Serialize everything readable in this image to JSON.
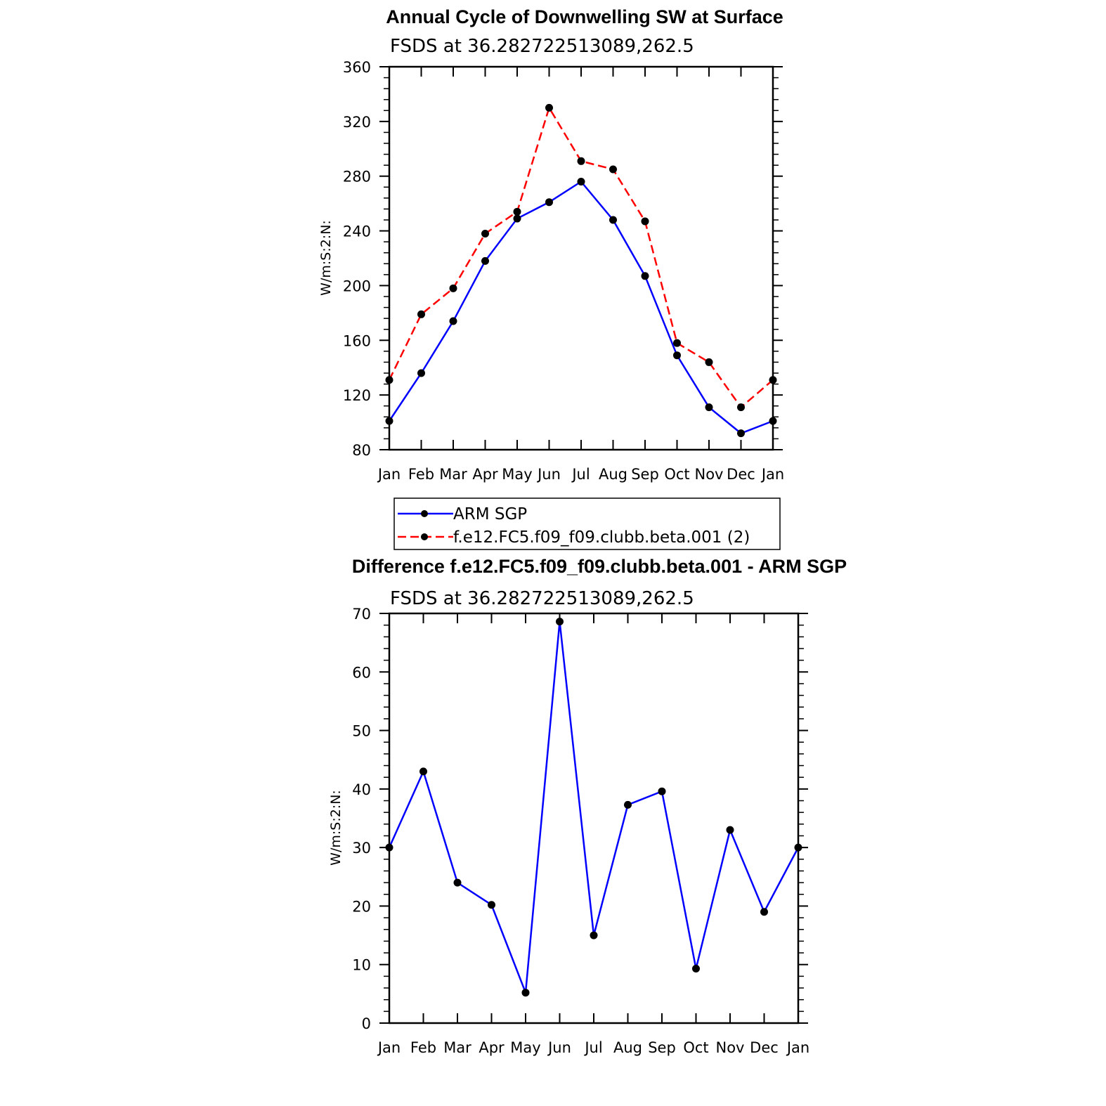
{
  "chart_data": [
    {
      "type": "line",
      "title": "Annual Cycle of Downwelling SW at Surface",
      "subtitle": "FSDS at 36.282722513089,262.5",
      "xlabel": "",
      "ylabel": "W/m:S:2:N:",
      "categories": [
        "Jan",
        "Feb",
        "Mar",
        "Apr",
        "May",
        "Jun",
        "Jul",
        "Aug",
        "Sep",
        "Oct",
        "Nov",
        "Dec",
        "Jan"
      ],
      "ylim": [
        80,
        360
      ],
      "yticks": [
        80,
        120,
        160,
        200,
        240,
        280,
        320,
        360
      ],
      "series": [
        {
          "name": "ARM SGP",
          "color": "#0000ff",
          "style": "solid",
          "marker": "dot",
          "values": [
            101,
            136,
            174,
            218,
            249,
            261,
            276,
            248,
            207,
            149,
            111,
            92,
            101
          ]
        },
        {
          "name": "f.e12.FC5.f09_f09.clubb.beta.001 (2)",
          "color": "#ff0000",
          "style": "dashed",
          "marker": "dot",
          "values": [
            131,
            179,
            198,
            238,
            254,
            330,
            291,
            285,
            247,
            158,
            144,
            111,
            131
          ]
        }
      ],
      "legend": {
        "position": "bottom",
        "entries": [
          "ARM SGP",
          "f.e12.FC5.f09_f09.clubb.beta.001 (2)"
        ]
      }
    },
    {
      "type": "line",
      "title": "Difference f.e12.FC5.f09_f09.clubb.beta.001 - ARM SGP",
      "subtitle": "FSDS at 36.282722513089,262.5",
      "xlabel": "",
      "ylabel": "W/m:S:2:N:",
      "categories": [
        "Jan",
        "Feb",
        "Mar",
        "Apr",
        "May",
        "Jun",
        "Jul",
        "Aug",
        "Sep",
        "Oct",
        "Nov",
        "Dec",
        "Jan"
      ],
      "ylim": [
        0,
        70
      ],
      "yticks": [
        0,
        10,
        20,
        30,
        40,
        50,
        60,
        70
      ],
      "series": [
        {
          "name": "Difference",
          "color": "#0000ff",
          "style": "solid",
          "marker": "dot",
          "values": [
            30,
            43,
            24,
            20.2,
            5.2,
            68.6,
            15,
            37.3,
            39.6,
            9.3,
            33,
            19,
            30
          ]
        }
      ]
    }
  ]
}
